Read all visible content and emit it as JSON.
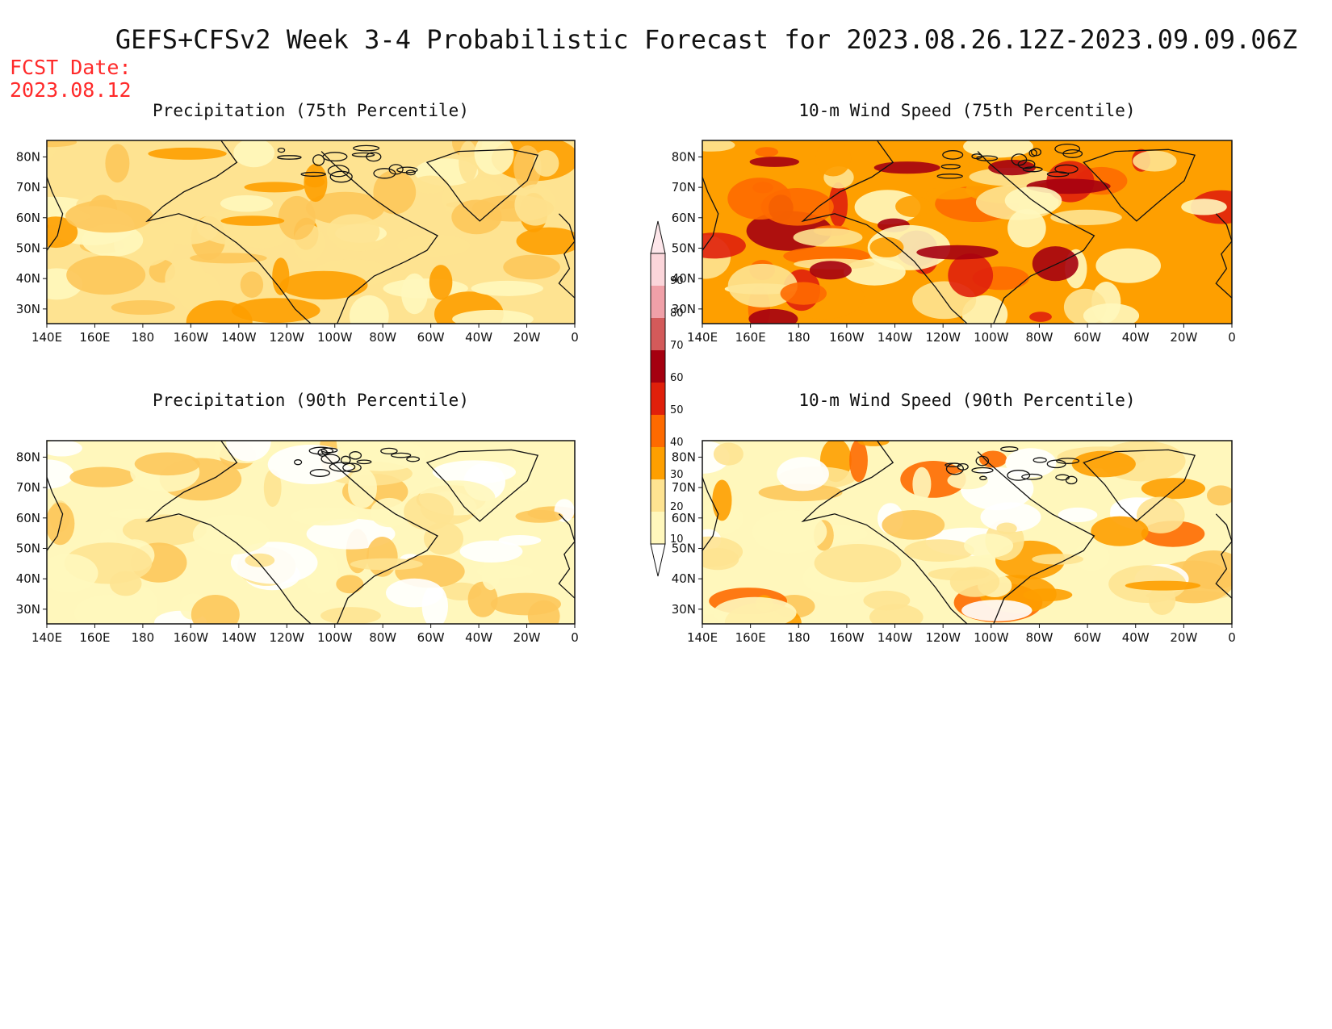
{
  "title": "GEFS+CFSv2 Week 3-4 Probabilistic Forecast for 2023.08.26.12Z-2023.09.09.06Z",
  "fcst_date_label": "FCST Date:",
  "fcst_date_value": "2023.08.12",
  "colorbar": {
    "levels": [
      "10",
      "20",
      "30",
      "40",
      "50",
      "60",
      "70",
      "80",
      "90"
    ],
    "colors": [
      "#fff7bc",
      "#fee391",
      "#fe9f00",
      "#fe6a00",
      "#e0200b",
      "#a50010",
      "#d35a5a",
      "#f0a0a8",
      "#fbd5da"
    ]
  },
  "longitude_labels": [
    "140E",
    "160E",
    "180",
    "160W",
    "140W",
    "120W",
    "100W",
    "80W",
    "60W",
    "40W",
    "20W",
    "0"
  ],
  "latitude_labels": [
    "80N",
    "70N",
    "60N",
    "50N",
    "40N",
    "30N"
  ],
  "panels": [
    {
      "id": "precip75",
      "title": "Precipitation (75th Percentile)",
      "base_color": "#fee391",
      "palette": [
        "#fff7bc",
        "#fee391",
        "#fdc75a",
        "#fe9f00"
      ]
    },
    {
      "id": "wind75",
      "title": "10-m Wind Speed (75th Percentile)",
      "base_color": "#fe9f00",
      "palette": [
        "#fff7bc",
        "#fee391",
        "#fe9f00",
        "#fe6a00",
        "#e0200b",
        "#a50010"
      ]
    },
    {
      "id": "precip90",
      "title": "Precipitation (90th Percentile)",
      "base_color": "#fff7bc",
      "palette": [
        "#ffffff",
        "#fff7bc",
        "#fee391",
        "#fdc75a"
      ]
    },
    {
      "id": "wind90",
      "title": "10-m Wind Speed (90th Percentile)",
      "base_color": "#fff7bc",
      "palette": [
        "#ffffff",
        "#fff7bc",
        "#fee391",
        "#fdc75a",
        "#fe9f00",
        "#fe6a00"
      ]
    }
  ]
}
